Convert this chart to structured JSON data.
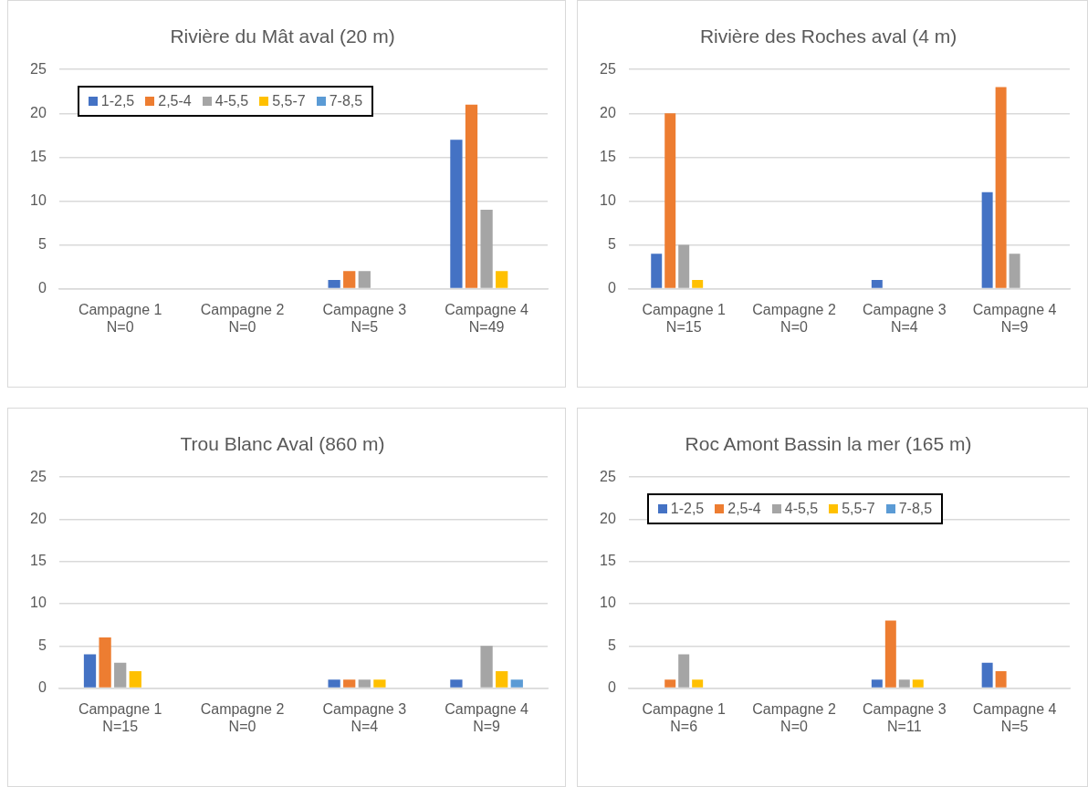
{
  "chart_data": [
    {
      "type": "bar",
      "title": "Rivière du Mât aval (20 m)",
      "categories": [
        "Campagne 1\nN=0",
        "Campagne 2\nN=0",
        "Campagne 3\nN=5",
        "Campagne 4\nN=49"
      ],
      "ylim": [
        0,
        25
      ],
      "yticks": [
        0,
        5,
        10,
        15,
        20,
        25
      ],
      "grid": "y",
      "legend": "top left",
      "series": [
        {
          "name": "1-2,5",
          "color": "#4472c4",
          "values": [
            0,
            0,
            1,
            17
          ]
        },
        {
          "name": "2,5-4",
          "color": "#ed7d31",
          "values": [
            0,
            0,
            2,
            21
          ]
        },
        {
          "name": "4-5,5",
          "color": "#a5a5a5",
          "values": [
            0,
            0,
            2,
            9
          ]
        },
        {
          "name": "5,5-7",
          "color": "#ffc000",
          "values": [
            0,
            0,
            0,
            2
          ]
        },
        {
          "name": "7-8,5",
          "color": "#5b9bd5",
          "values": [
            0,
            0,
            0,
            0
          ]
        }
      ]
    },
    {
      "type": "bar",
      "title": "Rivière des Roches aval (4 m)",
      "categories": [
        "Campagne 1\nN=15",
        "Campagne 2\nN=0",
        "Campagne 3\nN=4",
        "Campagne 4\nN=9"
      ],
      "ylim": [
        0,
        25
      ],
      "yticks": [
        0,
        5,
        10,
        15,
        20,
        25
      ],
      "grid": "y",
      "series": [
        {
          "color": "#4472c4",
          "values": [
            4,
            0,
            1,
            11
          ]
        },
        {
          "color": "#ed7d31",
          "values": [
            20,
            0,
            0,
            23
          ]
        },
        {
          "color": "#a5a5a5",
          "values": [
            5,
            0,
            0,
            4
          ]
        },
        {
          "color": "#ffc000",
          "values": [
            1,
            0,
            0,
            0
          ]
        },
        {
          "color": "#5b9bd5",
          "values": [
            0,
            0,
            0,
            0
          ]
        }
      ]
    },
    {
      "type": "bar",
      "title": "Trou Blanc Aval (860 m)",
      "categories": [
        "Campagne 1\nN=15",
        "Campagne 2\nN=0",
        "Campagne 3\nN=4",
        "Campagne 4\nN=9"
      ],
      "ylim": [
        0,
        25
      ],
      "yticks": [
        0,
        5,
        10,
        15,
        20,
        25
      ],
      "grid": "y",
      "series": [
        {
          "color": "#4472c4",
          "values": [
            4,
            0,
            1,
            1
          ]
        },
        {
          "color": "#ed7d31",
          "values": [
            6,
            0,
            1,
            0
          ]
        },
        {
          "color": "#a5a5a5",
          "values": [
            3,
            0,
            1,
            5
          ]
        },
        {
          "color": "#ffc000",
          "values": [
            2,
            0,
            1,
            2
          ]
        },
        {
          "color": "#5b9bd5",
          "values": [
            0,
            0,
            0,
            1
          ]
        }
      ]
    },
    {
      "type": "bar",
      "title": "Roc Amont Bassin la mer (165 m)",
      "categories": [
        "Campagne 1\nN=6",
        "Campagne 2\nN=0",
        "Campagne 3\nN=11",
        "Campagne 4\nN=5"
      ],
      "ylim": [
        0,
        25
      ],
      "yticks": [
        0,
        5,
        10,
        15,
        20,
        25
      ],
      "grid": "y",
      "legend": "top left",
      "series": [
        {
          "name": "1-2,5",
          "color": "#4472c4",
          "values": [
            0,
            0,
            1,
            3
          ]
        },
        {
          "name": "2,5-4",
          "color": "#ed7d31",
          "values": [
            1,
            0,
            8,
            2
          ]
        },
        {
          "name": "4-5,5",
          "color": "#a5a5a5",
          "values": [
            4,
            0,
            1,
            0
          ]
        },
        {
          "name": "5,5-7",
          "color": "#ffc000",
          "values": [
            1,
            0,
            1,
            0
          ]
        },
        {
          "name": "7-8,5",
          "color": "#5b9bd5",
          "values": [
            0,
            0,
            0,
            0
          ]
        }
      ]
    }
  ]
}
